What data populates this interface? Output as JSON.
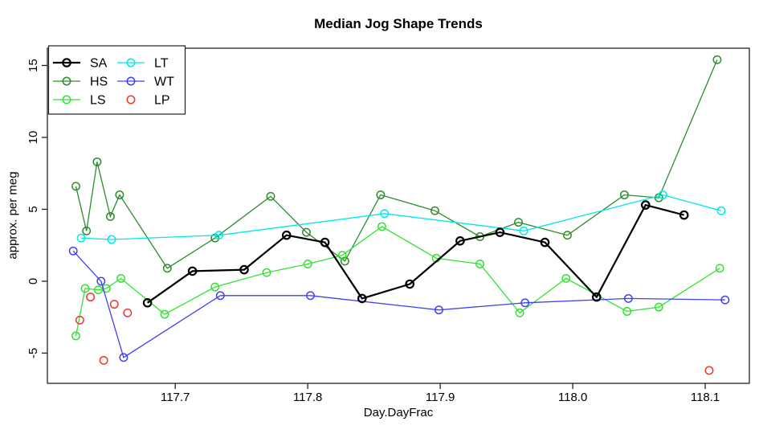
{
  "chart_data": {
    "type": "line",
    "title": "Median Jog Shape Trends",
    "xlabel": "Day.DayFrac",
    "ylabel": "approx. per meg",
    "xlim": [
      117.6035,
      118.1333
    ],
    "ylim": [
      -7.1,
      16.2
    ],
    "grid": false,
    "x_ticks": {
      "values": [
        117.7,
        117.8,
        117.9,
        118.0,
        118.1
      ],
      "labels": [
        "117.7",
        "117.8",
        "117.9",
        "118.0",
        "118.1"
      ]
    },
    "y_ticks": {
      "values": [
        -5,
        0,
        5,
        10,
        15
      ],
      "labels": [
        "-5",
        "0",
        "5",
        "10",
        "15"
      ]
    },
    "legend": {
      "position": "top-left",
      "entries": [
        {
          "label": "SA",
          "color": "#000000",
          "line": true
        },
        {
          "label": "HS",
          "color": "#2e8b2e",
          "line": true
        },
        {
          "label": "LS",
          "color": "#32e232",
          "line": true
        },
        {
          "label": "LT",
          "color": "#00e8e8",
          "line": true
        },
        {
          "label": "WT",
          "color": "#4040f2",
          "line": true
        },
        {
          "label": "LP",
          "color": "#ee3535",
          "line": false
        }
      ]
    },
    "series": [
      {
        "name": "SA",
        "color": "#000000",
        "line": true,
        "line_width": 2.2,
        "marker": "open-circle",
        "x": [
          117.679,
          117.713,
          117.752,
          117.784,
          117.813,
          117.841,
          117.877,
          117.915,
          117.945,
          117.979,
          118.018,
          118.055,
          118.084
        ],
        "y": [
          -1.5,
          0.7,
          0.8,
          3.2,
          2.7,
          -1.2,
          -0.2,
          2.8,
          3.4,
          2.7,
          -1.1,
          5.3,
          4.6
        ]
      },
      {
        "name": "HS",
        "color": "#2e8b2e",
        "line": true,
        "line_width": 1.3,
        "marker": "open-circle",
        "x": [
          117.625,
          117.633,
          117.641,
          117.651,
          117.658,
          117.694,
          117.73,
          117.772,
          117.799,
          117.828,
          117.855,
          117.896,
          117.93,
          117.959,
          117.996,
          118.039,
          118.065,
          118.109
        ],
        "y": [
          6.6,
          3.5,
          8.3,
          4.5,
          6.0,
          0.9,
          3.0,
          5.9,
          3.4,
          1.4,
          6.0,
          4.9,
          3.1,
          4.1,
          3.2,
          6.0,
          5.8,
          15.4
        ]
      },
      {
        "name": "LS",
        "color": "#32e232",
        "line": true,
        "line_width": 1.3,
        "marker": "open-circle",
        "x": [
          117.625,
          117.632,
          117.642,
          117.648,
          117.659,
          117.692,
          117.73,
          117.769,
          117.8,
          117.826,
          117.856,
          117.897,
          117.93,
          117.96,
          117.995,
          118.041,
          118.065,
          118.111
        ],
        "y": [
          -3.8,
          -0.5,
          -0.6,
          -0.5,
          0.2,
          -2.3,
          -0.4,
          0.6,
          1.2,
          1.8,
          3.8,
          1.6,
          1.2,
          -2.2,
          0.2,
          -2.1,
          -1.8,
          0.9
        ]
      },
      {
        "name": "LT",
        "color": "#00e8e8",
        "line": true,
        "line_width": 1.3,
        "marker": "open-circle",
        "x": [
          117.629,
          117.652,
          117.733,
          117.858,
          117.963,
          118.068,
          118.112
        ],
        "y": [
          3.0,
          2.9,
          3.2,
          4.7,
          3.5,
          6.0,
          4.9
        ]
      },
      {
        "name": "WT",
        "color": "#4040f2",
        "line": true,
        "line_width": 1.3,
        "marker": "open-circle",
        "x": [
          117.623,
          117.644,
          117.661,
          117.734,
          117.802,
          117.899,
          117.964,
          118.042,
          118.115
        ],
        "y": [
          2.1,
          0.0,
          -5.3,
          -1.0,
          -1.0,
          -2.0,
          -1.5,
          -1.2,
          -1.3
        ]
      },
      {
        "name": "LP",
        "color": "#ee3535",
        "line": false,
        "line_width": 1.3,
        "marker": "open-circle",
        "x": [
          117.628,
          117.636,
          117.646,
          117.654,
          117.664,
          118.103
        ],
        "y": [
          -2.7,
          -1.1,
          -5.5,
          -1.6,
          -2.2,
          -6.2
        ]
      }
    ]
  }
}
